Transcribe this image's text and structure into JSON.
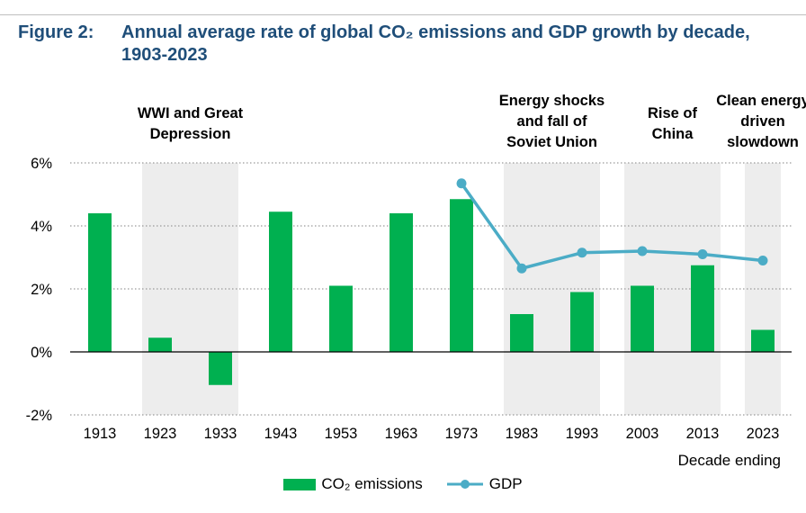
{
  "figure": {
    "label": "Figure 2:",
    "title": "Annual average rate of global CO₂ emissions and GDP growth by decade, 1903-2023"
  },
  "chart_data": {
    "type": "bar",
    "categories": [
      "1913",
      "1923",
      "1933",
      "1943",
      "1953",
      "1963",
      "1973",
      "1983",
      "1993",
      "2003",
      "2013",
      "2023"
    ],
    "series": [
      {
        "name": "CO₂ emissions",
        "type": "bar",
        "color": "#00B050",
        "values": [
          4.4,
          0.45,
          -1.05,
          4.45,
          2.1,
          4.4,
          4.85,
          1.2,
          1.9,
          2.1,
          2.75,
          0.7
        ]
      },
      {
        "name": "GDP",
        "type": "line",
        "color": "#4BACC6",
        "values": [
          null,
          null,
          null,
          null,
          null,
          null,
          5.35,
          2.65,
          3.15,
          3.2,
          3.1,
          2.9
        ]
      }
    ],
    "y_ticks": [
      "6%",
      "4%",
      "2%",
      "0%",
      "-2%"
    ],
    "y_tick_values": [
      6,
      4,
      2,
      0,
      -2
    ],
    "ylim": [
      -2,
      6
    ],
    "xlabel": "Decade ending",
    "grid": "horizontal dotted",
    "legend_position": "bottom",
    "shaded_periods": [
      {
        "label": [
          "WWI and Great",
          "Depression"
        ],
        "start_index": 1,
        "end_index": 2
      },
      {
        "label": [
          "Energy shocks",
          "and fall of",
          "Soviet Union"
        ],
        "start_index": 7,
        "end_index": 8
      },
      {
        "label": [
          "Rise of",
          "China"
        ],
        "start_index": 9,
        "end_index": 10
      },
      {
        "label": [
          "Clean energy",
          "driven",
          "slowdown"
        ],
        "start_index": 11,
        "end_index": 11
      }
    ],
    "colors": {
      "bar": "#00B050",
      "line": "#4BACC6",
      "shade": "#EDEDED",
      "title": "#1F4E79"
    }
  }
}
